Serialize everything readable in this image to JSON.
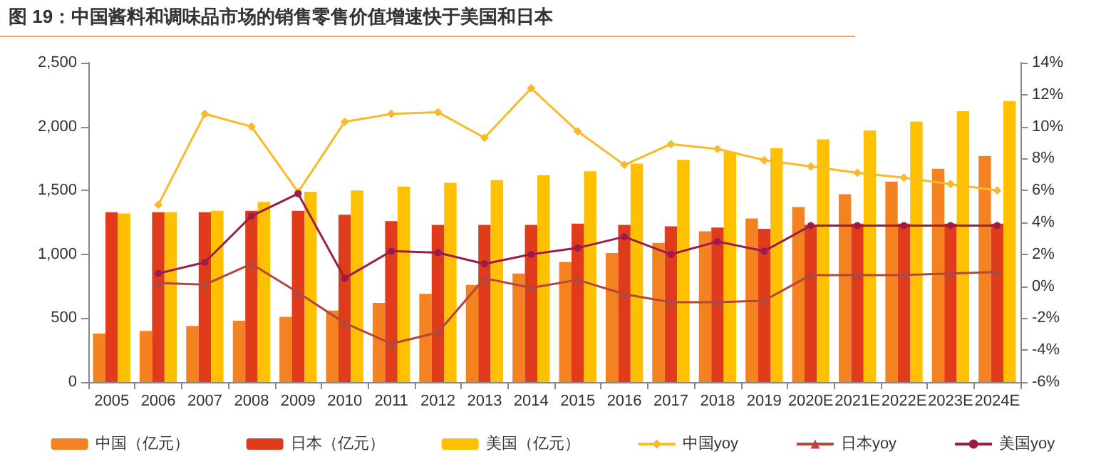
{
  "chart_data": {
    "type": "bar",
    "title": "图 19：中国酱料和调味品市场的销售零售价值增速快于美国和日本",
    "categories": [
      "2005",
      "2006",
      "2007",
      "2008",
      "2009",
      "2010",
      "2011",
      "2012",
      "2013",
      "2014",
      "2015",
      "2016",
      "2017",
      "2018",
      "2019",
      "2020E",
      "2021E",
      "2022E",
      "2023E",
      "2024E"
    ],
    "series": [
      {
        "name": "中国（亿元）",
        "color": "#f58220",
        "values": [
          380,
          400,
          440,
          480,
          510,
          560,
          620,
          690,
          760,
          850,
          940,
          1010,
          1090,
          1180,
          1280,
          1370,
          1470,
          1570,
          1670,
          1770
        ]
      },
      {
        "name": "日本（亿元）",
        "color": "#e03c1c",
        "values": [
          1330,
          1330,
          1330,
          1340,
          1340,
          1310,
          1260,
          1230,
          1230,
          1230,
          1240,
          1230,
          1220,
          1210,
          1200,
          1230,
          1240,
          1240,
          1240,
          1240
        ]
      },
      {
        "name": "美国（亿元）",
        "color": "#ffc000",
        "values": [
          1320,
          1330,
          1340,
          1410,
          1490,
          1500,
          1530,
          1560,
          1580,
          1620,
          1650,
          1710,
          1740,
          1800,
          1830,
          1900,
          1970,
          2040,
          2120,
          2200
        ]
      },
      {
        "name": "中国yoy",
        "type": "line",
        "axis": "y2",
        "marker": "diamond",
        "color": "#fbb829",
        "values": [
          null,
          5.1,
          10.8,
          10.0,
          5.9,
          10.3,
          10.8,
          10.9,
          9.3,
          12.4,
          9.7,
          7.6,
          8.9,
          8.6,
          7.9,
          7.5,
          7.1,
          6.8,
          6.4,
          6.0
        ]
      },
      {
        "name": "日本yoy",
        "type": "line",
        "axis": "y2",
        "marker": "triangle",
        "color": "#b5473a",
        "values": [
          null,
          0.2,
          0.1,
          1.4,
          -0.4,
          -2.3,
          -3.6,
          -2.9,
          0.5,
          -0.1,
          0.4,
          -0.5,
          -1.0,
          -1.0,
          -0.9,
          0.7,
          0.7,
          0.7,
          0.8,
          0.9
        ]
      },
      {
        "name": "美国yoy",
        "type": "line",
        "axis": "y2",
        "marker": "circle",
        "color": "#9b1b4a",
        "values": [
          null,
          0.8,
          1.5,
          4.4,
          5.8,
          0.5,
          2.2,
          2.1,
          1.4,
          2.0,
          2.4,
          3.1,
          2.0,
          2.8,
          2.2,
          3.8,
          3.8,
          3.8,
          3.8,
          3.8
        ]
      }
    ],
    "ylim": [
      0,
      2500
    ],
    "yticks": [
      0,
      {
        "value": 500,
        "label": "500"
      },
      {
        "value": 1000,
        "label": "1,000"
      },
      {
        "value": 1500,
        "label": "1,500"
      },
      {
        "value": 2000,
        "label": "2,000"
      },
      {
        "value": 2500,
        "label": "2,500"
      }
    ],
    "y2lim": [
      -6,
      14
    ],
    "y2ticks": [
      {
        "value": -6,
        "label": "-6%"
      },
      {
        "value": -4,
        "label": "-4%"
      },
      {
        "value": -2,
        "label": "-2%"
      },
      {
        "value": 0,
        "label": "0%"
      },
      {
        "value": 2,
        "label": "2%"
      },
      {
        "value": 4,
        "label": "4%"
      },
      {
        "value": 6,
        "label": "6%"
      },
      {
        "value": 8,
        "label": "8%"
      },
      {
        "value": 10,
        "label": "10%"
      },
      {
        "value": 12,
        "label": "12%"
      },
      {
        "value": 14,
        "label": "14%"
      }
    ],
    "grid": false,
    "legend": "bottom"
  }
}
